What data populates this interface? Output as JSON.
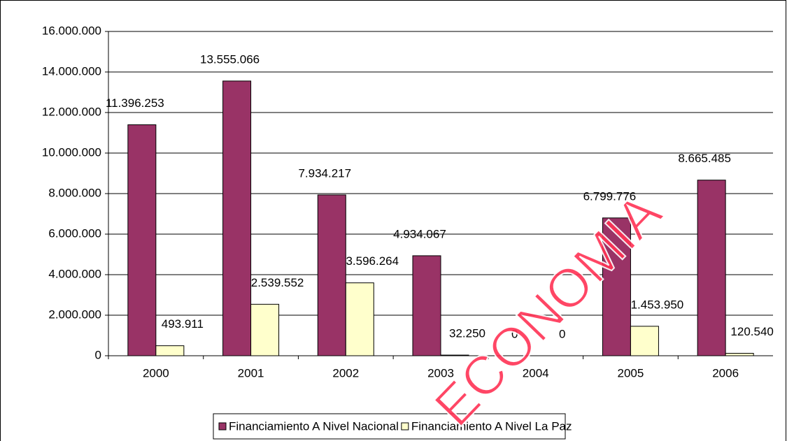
{
  "chart_data": {
    "type": "bar",
    "categories": [
      "2000",
      "2001",
      "2002",
      "2003",
      "2004",
      "2005",
      "2006"
    ],
    "series": [
      {
        "name": "Financiamiento A Nivel Nacional",
        "color": "#993366",
        "values": [
          11396253,
          13555066,
          7934217,
          4934067,
          0,
          6799776,
          8665485
        ],
        "value_labels": [
          "11.396.253",
          "13.555.066",
          "7.934.217",
          "4.934.067",
          "0",
          "6.799.776",
          "8.665.485"
        ]
      },
      {
        "name": "Financiamiento A Nivel La Paz",
        "color": "#ffffcc",
        "values": [
          493911,
          2539552,
          3596264,
          32250,
          0,
          1453950,
          120540
        ],
        "value_labels": [
          "493.911",
          "2.539.552",
          "3.596.264",
          "32.250",
          "0",
          "1.453.950",
          "120.540"
        ]
      }
    ],
    "ylim": [
      0,
      16000000
    ],
    "yticks": [
      0,
      {
        "value": 2000000,
        "label": "2.000.000"
      },
      {
        "value": 4000000,
        "label": "4.000.000"
      },
      {
        "value": 6000000,
        "label": "6.000.000"
      },
      {
        "value": 8000000,
        "label": "8.000.000"
      },
      {
        "value": 10000000,
        "label": "10.000.000"
      },
      {
        "value": 12000000,
        "label": "12.000.000"
      },
      {
        "value": 14000000,
        "label": "14.000.000"
      },
      {
        "value": 16000000,
        "label": "16.000.000"
      }
    ],
    "grid": true,
    "legend": "bottom",
    "watermark": "ECONOMIA"
  }
}
